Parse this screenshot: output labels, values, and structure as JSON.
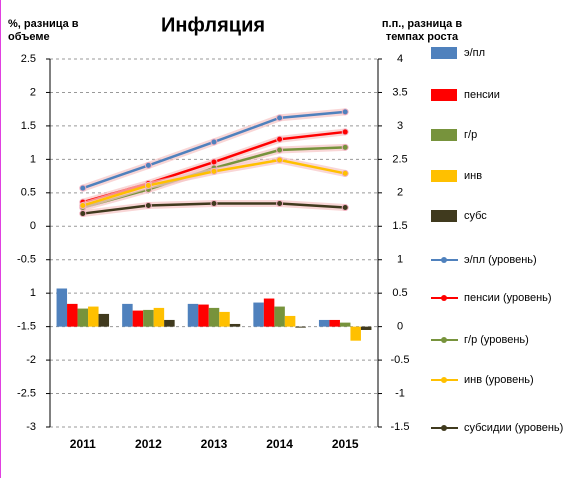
{
  "chart_data": {
    "type": "combo",
    "title": "Инфляция",
    "y_label": "%, разница в объеме",
    "y2_label": "п.п., разница в темпах роста",
    "categories": [
      "2011",
      "2012",
      "2013",
      "2014",
      "2015"
    ],
    "ylim": [
      -3,
      2.5
    ],
    "yticks": [
      2.5,
      2,
      1.5,
      1,
      0.5,
      0,
      -0.5,
      {
        "value": -1,
        "label": "1"
      },
      -1.5,
      -2,
      -2.5,
      -3
    ],
    "y2lim": [
      -1.5,
      4
    ],
    "y2ticks": [
      4,
      3.5,
      3,
      2.5,
      2,
      1.5,
      1,
      0.5,
      0,
      -0.5,
      -1,
      -1.5
    ],
    "grid": true,
    "legend": "right",
    "series": [
      {
        "name": "э/пл",
        "type": "bar",
        "axis": "y2",
        "color": "#4f81bd",
        "values": [
          0.57,
          0.34,
          0.34,
          0.36,
          0.1
        ]
      },
      {
        "name": "пенсии",
        "type": "bar",
        "axis": "y2",
        "color": "#ff0000",
        "values": [
          0.34,
          0.24,
          0.33,
          0.42,
          0.1
        ]
      },
      {
        "name": "г/р",
        "type": "bar",
        "axis": "y2",
        "color": "#77933c",
        "values": [
          0.27,
          0.25,
          0.28,
          0.3,
          0.06
        ]
      },
      {
        "name": "инв",
        "type": "bar",
        "axis": "y2",
        "color": "#ffc000",
        "values": [
          0.3,
          0.28,
          0.22,
          0.16,
          -0.21
        ]
      },
      {
        "name": "субс",
        "type": "bar",
        "axis": "y2",
        "color": "#403a1e",
        "values": [
          0.19,
          0.1,
          0.04,
          -0.01,
          -0.05
        ]
      },
      {
        "name": "э/пл (уровень)",
        "type": "line",
        "color": "#4f81bd",
        "values": [
          0.57,
          0.91,
          1.26,
          1.62,
          1.71
        ]
      },
      {
        "name": "пенсии (уровень)",
        "type": "line",
        "color": "#ff0000",
        "values": [
          0.36,
          0.64,
          0.96,
          1.3,
          1.41
        ]
      },
      {
        "name": "г/р (уровень)",
        "type": "line",
        "color": "#77933c",
        "values": [
          0.28,
          0.55,
          0.87,
          1.14,
          1.18
        ]
      },
      {
        "name": "инв (уровень)",
        "type": "line",
        "color": "#ffc000",
        "values": [
          0.31,
          0.61,
          0.82,
          0.99,
          0.79
        ]
      },
      {
        "name": "субсидии (уровень)",
        "type": "line",
        "color": "#403a1e",
        "values": [
          0.19,
          0.31,
          0.34,
          0.34,
          0.28
        ]
      }
    ]
  }
}
